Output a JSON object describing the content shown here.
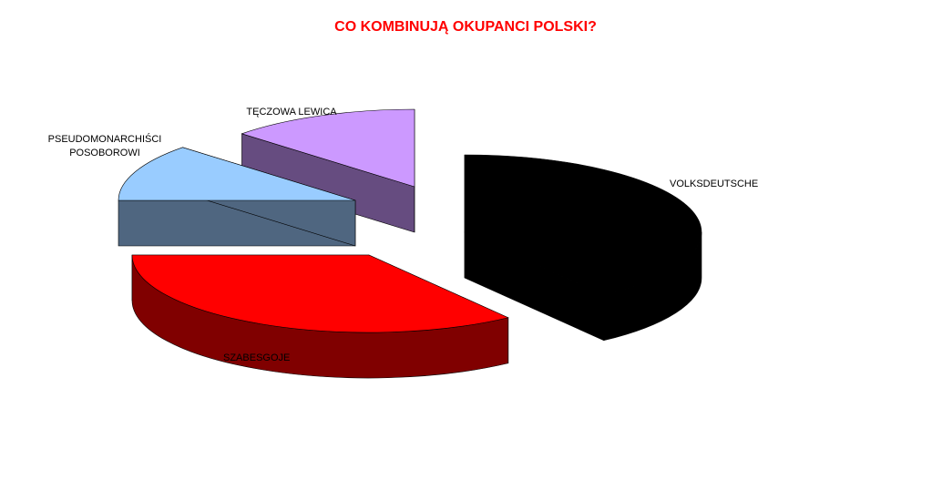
{
  "chart_data": {
    "type": "pie",
    "title": "CO KOMBINUJĄ OKUPANCI POLSKI?",
    "title_color": "#ff0000",
    "legend": "none",
    "exploded": true,
    "slices": [
      {
        "label": "VOLKSDEUTSCHE",
        "value": 40,
        "top_color": "#000000",
        "side_color": "#000000"
      },
      {
        "label": "SZABESGOJE",
        "value": 35,
        "top_color": "#ff0000",
        "side_color": "#800000"
      },
      {
        "label": "PSEUDOMONARCHIŚCI POSOBOROWI",
        "value": 12,
        "top_color": "#99ccff",
        "side_color": "#4f6680"
      },
      {
        "label": "TĘCZOWA LEWICA",
        "value": 13,
        "top_color": "#cc99ff",
        "side_color": "#664c80"
      }
    ]
  }
}
